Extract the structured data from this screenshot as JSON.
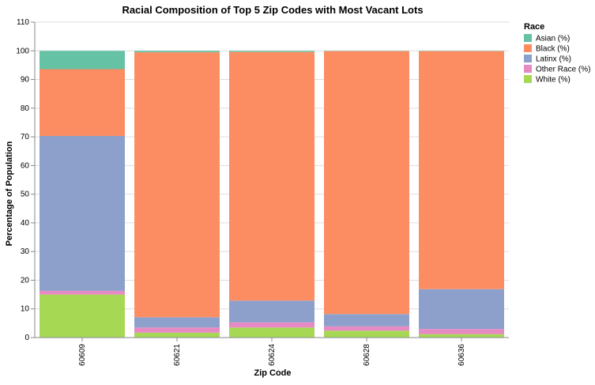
{
  "chart_data": {
    "type": "bar",
    "stacked": true,
    "title": "Racial Composition of Top 5 Zip Codes with Most Vacant Lots",
    "xlabel": "Zip Code",
    "ylabel": "Percentage of Population",
    "ylim": [
      0,
      110
    ],
    "yticks": [
      0,
      10,
      20,
      30,
      40,
      50,
      60,
      70,
      80,
      90,
      100,
      110
    ],
    "grid": true,
    "legend_title": "Race",
    "legend_position": "right",
    "categories": [
      "60609",
      "60621",
      "60624",
      "60628",
      "60636"
    ],
    "series": [
      {
        "name": "White (%)",
        "color": "#a6d854",
        "values": [
          15.0,
          1.7,
          3.5,
          2.4,
          1.2
        ]
      },
      {
        "name": "Other Race (%)",
        "color": "#e78ac3",
        "values": [
          1.3,
          1.8,
          1.8,
          1.5,
          1.8
        ]
      },
      {
        "name": "Latinx (%)",
        "color": "#8da0cb",
        "values": [
          54.0,
          3.6,
          7.6,
          4.3,
          13.9
        ]
      },
      {
        "name": "Black (%)",
        "color": "#fc8d62",
        "values": [
          23.3,
          92.4,
          86.7,
          91.7,
          83.0
        ]
      },
      {
        "name": "Asian (%)",
        "color": "#66c2a5",
        "values": [
          6.4,
          0.5,
          0.4,
          0.1,
          0.1
        ]
      }
    ],
    "legend_order": [
      "Asian (%)",
      "Black (%)",
      "Latinx (%)",
      "Other Race (%)",
      "White (%)"
    ]
  }
}
